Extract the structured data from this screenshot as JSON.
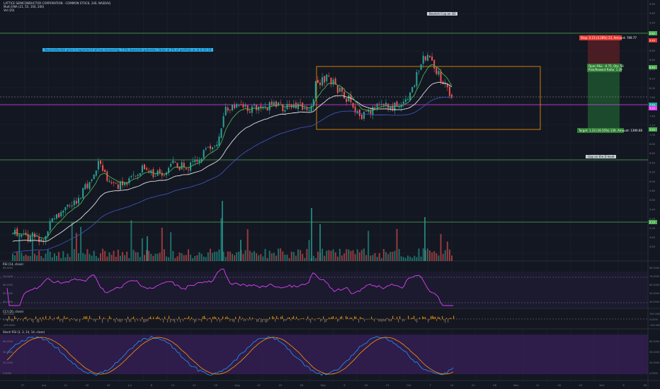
{
  "legend": {
    "title": "LATTICE SEMICONDUCTOR CORPORATION - COMMON STOCK, 240, NASDAQ",
    "line2": "Multi EMA (21, 55, 100, 200)",
    "line3": "Vol (20)"
  },
  "annotations": {
    "bearish": "Bearish Cup on 1D",
    "gap": "Gap on the D level",
    "note": "Bearish/bullish price is expected if all has recovering, 5.5% downside potential, Stake at 2% of portfolio as at 6-10-19",
    "stop": "Stop: 0.23 (4.28%) 23, Amount: 709.77",
    "entry_line1": "Open P&L: -0.75, Qty: 50",
    "entry_line2": "Risk/Reward Ratio: 1.29",
    "target": "Target: 1.33 (16.55%) 139, Amount: 1390.68"
  },
  "indicators": {
    "rsi_label": "RSI (14, close)",
    "cci_label": "CCI (20, close)",
    "stoch_label": "Stoch RSI (3, 3, 14, 14, close)"
  },
  "price_axis": {
    "labels": [
      "9.80",
      "9.60",
      "9.40",
      "9.20",
      "9.00",
      "8.80",
      "8.60",
      "8.40",
      "8.20",
      "8.00",
      "7.80",
      "7.60",
      "7.40",
      "7.20",
      "7.00",
      "6.80",
      "6.60",
      "6.40",
      "6.20",
      "6.00",
      "5.80",
      "5.60",
      "5.40",
      "5.20",
      "5.00",
      "4.80",
      "4.60"
    ],
    "badges": [
      {
        "text": "9.82",
        "color": "#4caf50"
      },
      {
        "text": "9.40",
        "color": "#e53935"
      },
      {
        "text": "8.43",
        "color": "#4caf50"
      },
      {
        "text": "7.63",
        "color": "#26a69a"
      },
      {
        "text": "7.57",
        "color": "#e040fb"
      },
      {
        "text": "7.21",
        "color": "#4caf50"
      },
      {
        "text": "5.19",
        "color": "#4caf50"
      }
    ]
  },
  "rsi_axis": [
    "80.0000",
    "70.0000",
    "60.0000",
    "50.0000",
    "40.0000"
  ],
  "cci_axis": [
    "100.0000",
    "0.0000",
    "-100.0000"
  ],
  "stoch_axis": [
    "80.0000",
    "50.0000",
    "20.0000",
    "0.0000"
  ],
  "time_axis": [
    "27",
    "Jun",
    "11",
    "18",
    "25",
    "Jul",
    "8",
    "15",
    "22",
    "29",
    "Aug",
    "12",
    "19",
    "26",
    "Sep",
    "9",
    "16",
    "23",
    "Oct",
    "7",
    "14",
    "21",
    "28",
    "Nov",
    "11",
    "18",
    "25",
    "Dec",
    "9",
    "16"
  ],
  "colors": {
    "bull": "#26a69a",
    "bear": "#ef5350",
    "ema21": "#4caf50",
    "ema55": "#e0e0e0",
    "ema100": "#3f51b5",
    "rsi": "#e040fb",
    "stoch_k": "#2196f3",
    "stoch_d": "#ff9800",
    "level": "#4caf50",
    "rect": "#ff9800"
  }
}
